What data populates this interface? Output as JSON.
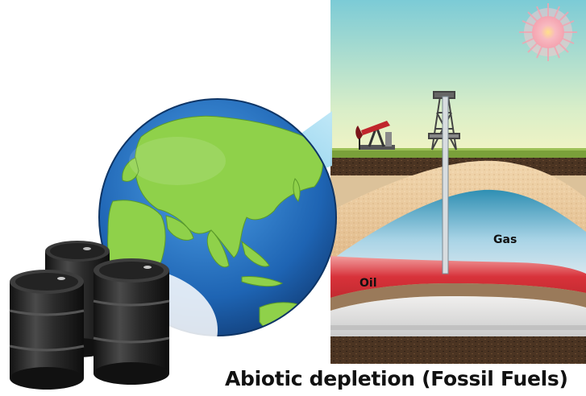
{
  "labels": {
    "gas": "Gas",
    "oil": "Oil"
  },
  "caption": "Abiotic depletion (Fossil Fuels)",
  "icons": [
    "globe-icon",
    "oil-barrels-icon",
    "sun-icon",
    "pumpjack-icon",
    "drilling-rig-icon"
  ],
  "colors": {
    "sky_top": "#8fd0d8",
    "sky_bottom": "#eef3c8",
    "sand": "#e7c49a",
    "gas": "#a9d4e6",
    "oil": "#d8323a",
    "ocean": "#1f6ab8",
    "land": "#8fd14a",
    "barrel": "#2a2a2a"
  }
}
